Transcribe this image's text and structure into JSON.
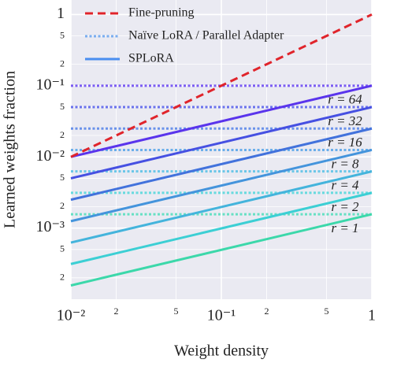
{
  "chart_data": {
    "type": "line",
    "log_x": true,
    "log_y": true,
    "grid": true,
    "xlabel": "Weight density",
    "ylabel": "Learned weights fraction",
    "xlim": [
      0.01,
      1
    ],
    "ylim": [
      0.0001,
      1.6
    ],
    "xticks": [
      {
        "value": 0.01,
        "label": "10⁻²"
      },
      {
        "value": 0.02,
        "label": "2"
      },
      {
        "value": 0.05,
        "label": "5"
      },
      {
        "value": 0.1,
        "label": "10⁻¹"
      },
      {
        "value": 0.2,
        "label": "2"
      },
      {
        "value": 0.5,
        "label": "5"
      },
      1
    ],
    "yticks": [
      {
        "value": 0.0002,
        "label": "2"
      },
      {
        "value": 0.0005,
        "label": "5"
      },
      {
        "value": 0.001,
        "label": "10⁻³"
      },
      {
        "value": 0.002,
        "label": "2"
      },
      {
        "value": 0.005,
        "label": "5"
      },
      {
        "value": 0.01,
        "label": "10⁻²"
      },
      {
        "value": 0.02,
        "label": "2"
      },
      {
        "value": 0.05,
        "label": "5"
      },
      {
        "value": 0.1,
        "label": "10⁻¹"
      },
      {
        "value": 0.2,
        "label": "2"
      },
      {
        "value": 0.5,
        "label": "5"
      },
      1
    ],
    "x": [
      0.01,
      1
    ],
    "series": [
      {
        "name": "Fine-pruning",
        "color": "#e0242b",
        "style": "dashed",
        "lines": [
          {
            "values": [
              0.01,
              1
            ]
          }
        ]
      },
      {
        "name": "Naïve LoRA / Parallel Adapter",
        "color": "#7aaef0",
        "style": "dotted",
        "lines": [
          {
            "color": "#7b5cf2",
            "values": [
              0.1,
              0.1
            ]
          },
          {
            "color": "#6a72ec",
            "values": [
              0.05,
              0.05
            ]
          },
          {
            "color": "#6a92ea",
            "values": [
              0.025,
              0.025
            ]
          },
          {
            "color": "#6aaeea",
            "values": [
              0.0125,
              0.0125
            ]
          },
          {
            "color": "#6ac6e8",
            "values": [
              0.00625,
              0.00625
            ]
          },
          {
            "color": "#66dade",
            "values": [
              0.003125,
              0.003125
            ]
          },
          {
            "color": "#66e0c4",
            "values": [
              0.0015625,
              0.0015625
            ]
          }
        ]
      },
      {
        "name": "SPLoRA",
        "color": "#4a8ef0",
        "style": "solid",
        "lines": [
          {
            "color": "#5a34ec",
            "values": [
              0.01,
              0.1
            ]
          },
          {
            "color": "#4650e2",
            "values": [
              0.005,
              0.05
            ]
          },
          {
            "color": "#4272dc",
            "values": [
              0.0025,
              0.025
            ]
          },
          {
            "color": "#4494dc",
            "values": [
              0.00125,
              0.0125
            ]
          },
          {
            "color": "#44b4dc",
            "values": [
              0.000625,
              0.00625
            ]
          },
          {
            "color": "#3ccfd4",
            "values": [
              0.0003125,
              0.003125
            ]
          },
          {
            "color": "#3cd8aa",
            "values": [
              0.00015625,
              0.0015625
            ]
          }
        ]
      }
    ],
    "annotations": [
      "r = 64",
      "r = 32",
      "r = 16",
      "r = 8",
      "r = 4",
      "r = 2",
      "r = 1"
    ]
  }
}
